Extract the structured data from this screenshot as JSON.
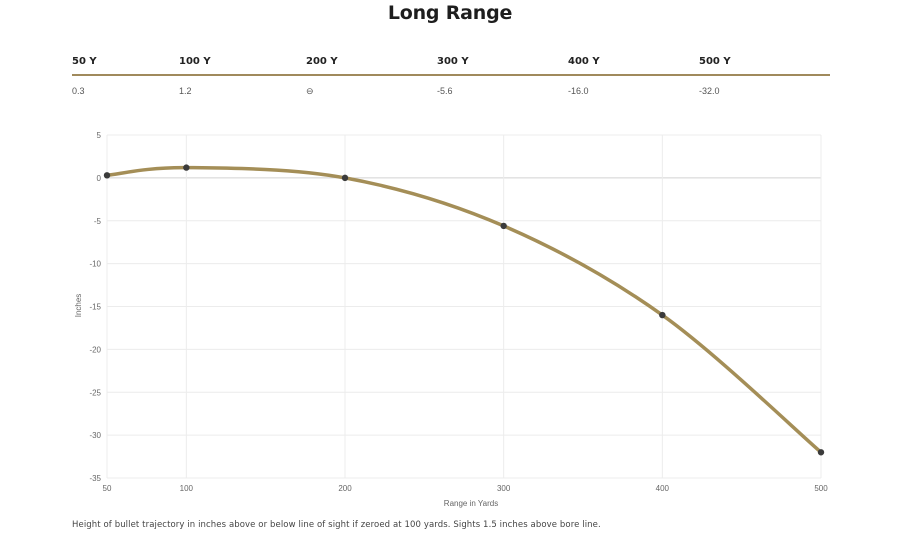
{
  "title": "Long Range",
  "table": {
    "headers": [
      "50 Y",
      "100 Y",
      "200 Y",
      "300 Y",
      "400 Y",
      "500 Y"
    ],
    "values": [
      "0.3",
      "1.2",
      "⊖",
      "-5.6",
      "-16.0",
      "-32.0"
    ]
  },
  "caption": "Height of bullet trajectory in inches above or below line of sight if zeroed at 100 yards. Sights 1.5 inches above bore line.",
  "colors": {
    "line": "#a48e57",
    "point": "#3b3b3b",
    "rule": "#a08a5c"
  },
  "chart_data": {
    "type": "line",
    "x": [
      50,
      100,
      200,
      300,
      400,
      500
    ],
    "series": [
      {
        "values": [
          0.3,
          1.2,
          0.0,
          -5.6,
          -16.0,
          -32.0
        ]
      }
    ],
    "xlabel": "Range in Yards",
    "ylabel": "Inches",
    "xlim": [
      50,
      500
    ],
    "ylim": [
      -35,
      5
    ],
    "xticks": [
      50,
      100,
      200,
      300,
      400,
      500
    ],
    "yticks": [
      5,
      0,
      -5,
      -10,
      -15,
      -20,
      -25,
      -30,
      -35
    ],
    "grid": true,
    "legend": "none"
  }
}
